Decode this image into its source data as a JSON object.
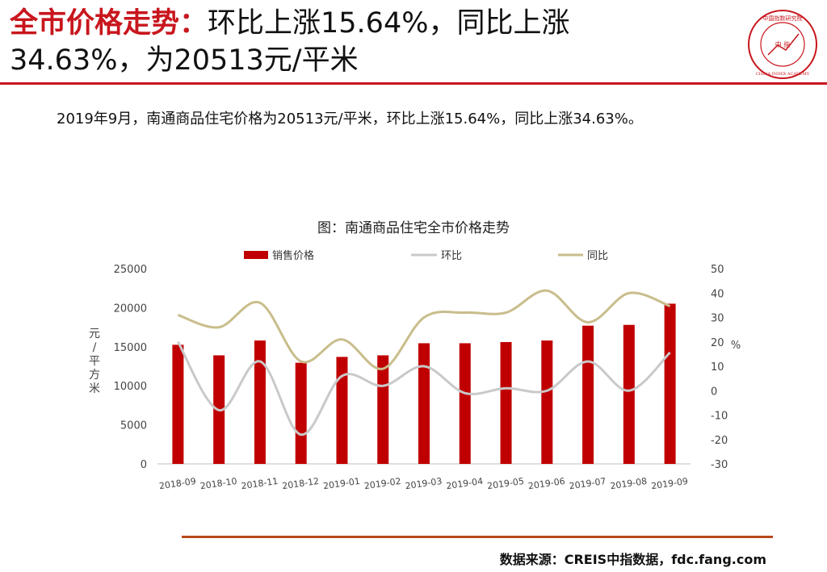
{
  "header": {
    "title_highlight": "全市价格走势：",
    "title_rest": "环比上涨15.64%，同比上涨",
    "title_line2": "34.63%，为20513元/平米"
  },
  "logo": {
    "text_top": "中国指数研究院",
    "text_center": "中 指",
    "text_bottom": "CHINA INDEX ACADEMY"
  },
  "summary": "2019年9月，南通商品住宅价格为20513元/平米，环比上涨15.64%，同比上涨34.63%。",
  "chart_title": "图：南通商品住宅全市价格走势",
  "source": "数据来源：CREIS中指数据，fdc.fang.com",
  "colors": {
    "accent": "#c8161d",
    "bar": "#c00000",
    "mom_line": "#c9c9c9",
    "yoy_line": "#c9bd8c",
    "footer_rule": "#b84a1b"
  },
  "chart_data": {
    "type": "bar",
    "categories": [
      "2018-09",
      "2018-10",
      "2018-11",
      "2018-12",
      "2019-01",
      "2019-02",
      "2019-03",
      "2019-04",
      "2019-05",
      "2019-06",
      "2019-07",
      "2019-08",
      "2019-09"
    ],
    "series": [
      {
        "name": "销售价格",
        "type": "bar",
        "axis": "left",
        "values": [
          15250,
          13900,
          15800,
          12950,
          13700,
          13900,
          15450,
          15450,
          15600,
          15800,
          17700,
          17800,
          20513
        ]
      },
      {
        "name": "环比",
        "type": "line",
        "axis": "right",
        "values": [
          20,
          -8,
          12,
          -18,
          6,
          2,
          10,
          -1,
          1,
          0,
          12,
          0,
          15.64
        ]
      },
      {
        "name": "同比",
        "type": "line",
        "axis": "right",
        "values": [
          31,
          26,
          36,
          12,
          21,
          9,
          30,
          32,
          32,
          41,
          28,
          40,
          34.63
        ]
      }
    ],
    "ylabel_left": "元/平方米",
    "ylabel_right": "%",
    "ylim_left": [
      0,
      25000
    ],
    "yticks_left": [
      "0",
      "5000",
      "10000",
      "15000",
      "20000",
      "25000"
    ],
    "ylim_right": [
      -30,
      50
    ],
    "yticks_right": [
      "-30",
      "-20",
      "-10",
      "0",
      "10",
      "20",
      "30",
      "40",
      "50"
    ],
    "legend": [
      "销售价格",
      "环比",
      "同比"
    ],
    "legend_position": "top",
    "grid": false
  }
}
